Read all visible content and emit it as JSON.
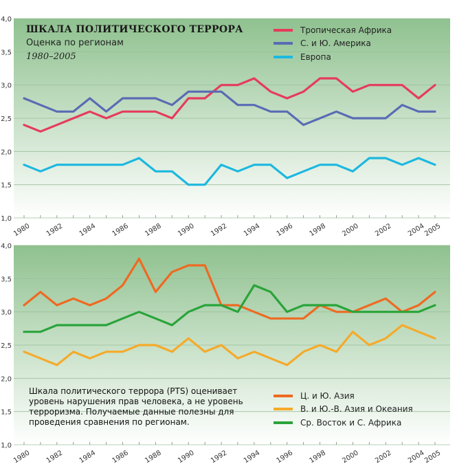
{
  "colors": {
    "tropical_africa": "#e63b5c",
    "americas": "#5a6bb4",
    "europe": "#1cb8e0",
    "central_south_asia": "#ee6a22",
    "east_asia_oceania": "#f5aa2a",
    "middle_east_north_africa": "#2aa43a",
    "panel_top": "#8fc18f",
    "panel_bottom": "#ffffff"
  },
  "chart_data": [
    {
      "type": "line",
      "title": "ШКАЛА ПОЛИТИЧЕСКОГО ТЕРРОРА",
      "subtitle": "Оценка по регионам",
      "period": "1980–2005",
      "ylim": [
        1.0,
        4.0
      ],
      "yticks": [
        "1,0",
        "1,5",
        "2,0",
        "2,5",
        "3,0",
        "3,5",
        "4,0"
      ],
      "x": [
        1980,
        1981,
        1982,
        1983,
        1984,
        1985,
        1986,
        1987,
        1988,
        1989,
        1990,
        1991,
        1992,
        1993,
        1994,
        1995,
        1996,
        1997,
        1998,
        1999,
        2000,
        2001,
        2002,
        2003,
        2004,
        2005
      ],
      "xtick_labels": [
        "1980",
        "1982",
        "1984",
        "1986",
        "1988",
        "1990",
        "1992",
        "1994",
        "1996",
        "1998",
        "2000",
        "2002",
        "2004",
        "2005"
      ],
      "series": [
        {
          "name": "Тропическая Африка",
          "color_key": "tropical_africa",
          "values": [
            2.4,
            2.3,
            2.4,
            2.5,
            2.6,
            2.5,
            2.6,
            2.6,
            2.6,
            2.5,
            2.8,
            2.8,
            3.0,
            3.0,
            3.1,
            2.9,
            2.8,
            2.9,
            3.1,
            3.1,
            2.9,
            3.0,
            3.0,
            3.0,
            2.8,
            3.0
          ]
        },
        {
          "name": "С. и Ю. Америка",
          "color_key": "americas",
          "values": [
            2.8,
            2.7,
            2.6,
            2.6,
            2.8,
            2.6,
            2.8,
            2.8,
            2.8,
            2.7,
            2.9,
            2.9,
            2.9,
            2.7,
            2.7,
            2.6,
            2.6,
            2.4,
            2.5,
            2.6,
            2.5,
            2.5,
            2.5,
            2.7,
            2.6,
            2.6
          ]
        },
        {
          "name": "Европа",
          "color_key": "europe",
          "values": [
            1.8,
            1.7,
            1.8,
            1.8,
            1.8,
            1.8,
            1.8,
            1.9,
            1.7,
            1.7,
            1.5,
            1.5,
            1.8,
            1.7,
            1.8,
            1.8,
            1.6,
            1.7,
            1.8,
            1.8,
            1.7,
            1.9,
            1.9,
            1.8,
            1.9,
            1.8
          ]
        }
      ]
    },
    {
      "type": "line",
      "ylim": [
        1.0,
        4.0
      ],
      "yticks": [
        "1,0",
        "1,5",
        "2,0",
        "2,5",
        "3,0",
        "3,5",
        "4,0"
      ],
      "x": [
        1980,
        1981,
        1982,
        1983,
        1984,
        1985,
        1986,
        1987,
        1988,
        1989,
        1990,
        1991,
        1992,
        1993,
        1994,
        1995,
        1996,
        1997,
        1998,
        1999,
        2000,
        2001,
        2002,
        2003,
        2004,
        2005
      ],
      "xtick_labels": [
        "1980",
        "1982",
        "1984",
        "1986",
        "1988",
        "1990",
        "1992",
        "1994",
        "1996",
        "1998",
        "2000",
        "2002",
        "2004",
        "2005"
      ],
      "note": [
        "Шкала политического террора (PTS) оценивает",
        "уровень нарушения прав человека, а не уровень",
        "терроризма. Получаемые данные полезны для",
        "проведения сравнения по регионам."
      ],
      "series": [
        {
          "name": "Ц. и Ю. Азия",
          "color_key": "central_south_asia",
          "values": [
            3.1,
            3.3,
            3.1,
            3.2,
            3.1,
            3.2,
            3.4,
            3.8,
            3.3,
            3.6,
            3.7,
            3.7,
            3.1,
            3.1,
            3.0,
            2.9,
            2.9,
            2.9,
            3.1,
            3.0,
            3.0,
            3.1,
            3.2,
            3.0,
            3.1,
            3.3
          ]
        },
        {
          "name": "В. и Ю.-В. Азия и Океания",
          "color_key": "east_asia_oceania",
          "values": [
            2.4,
            2.3,
            2.2,
            2.4,
            2.3,
            2.4,
            2.4,
            2.5,
            2.5,
            2.4,
            2.6,
            2.4,
            2.5,
            2.3,
            2.4,
            2.3,
            2.2,
            2.4,
            2.5,
            2.4,
            2.7,
            2.5,
            2.6,
            2.8,
            2.7,
            2.6
          ]
        },
        {
          "name": "Ср. Восток и С. Африка",
          "color_key": "middle_east_north_africa",
          "values": [
            2.7,
            2.7,
            2.8,
            2.8,
            2.8,
            2.8,
            2.9,
            3.0,
            2.9,
            2.8,
            3.0,
            3.1,
            3.1,
            3.0,
            3.4,
            3.3,
            3.0,
            3.1,
            3.1,
            3.1,
            3.0,
            3.0,
            3.0,
            3.0,
            3.0,
            3.1
          ]
        }
      ]
    }
  ]
}
